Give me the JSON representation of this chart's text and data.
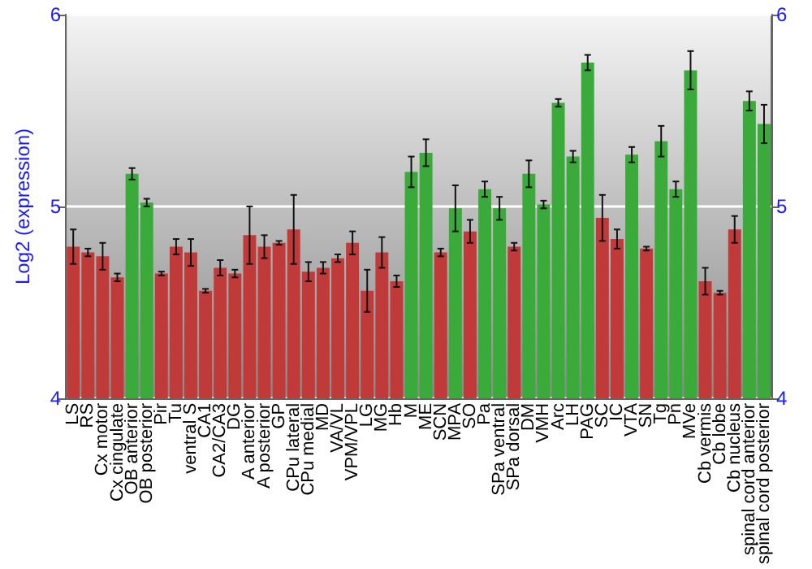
{
  "chart_data": {
    "type": "bar",
    "ylabel": "Log2 (expression)",
    "categories": [
      "LS",
      "RS",
      "Cx motor",
      "Cx cingulate",
      "OB anterior",
      "OB posterior",
      "Pir",
      "Tu",
      "ventral S",
      "CA1",
      "CA2/CA3",
      "DG",
      "A anterior",
      "A posterior",
      "GP",
      "CPu lateral",
      "CPu medial",
      "MD",
      "VA/VL",
      "VPM/VPL",
      "LG",
      "MG",
      "Hb",
      "M",
      "ME",
      "SCN",
      "MPA",
      "SO",
      "Pa",
      "SPa ventral",
      "SPa dorsal",
      "DM",
      "VMH",
      "Arc",
      "LH",
      "PAG",
      "SC",
      "IC",
      "VTA",
      "SN",
      "Tg",
      "Pn",
      "MVe",
      "Cb vermis",
      "Cb lobe",
      "Cb nucleus",
      "spinal cord anterior",
      "spinal cord posterior"
    ],
    "values": [
      4.79,
      4.76,
      4.74,
      4.63,
      5.17,
      5.02,
      4.65,
      4.79,
      4.76,
      4.56,
      4.68,
      4.65,
      4.85,
      4.79,
      4.81,
      4.88,
      4.66,
      4.68,
      4.73,
      4.81,
      4.56,
      4.76,
      4.61,
      5.18,
      5.28,
      4.76,
      4.99,
      4.87,
      5.09,
      4.99,
      4.79,
      5.17,
      5.01,
      5.54,
      5.26,
      5.75,
      4.94,
      4.83,
      5.27,
      4.78,
      5.34,
      5.09,
      5.71,
      4.61,
      4.55,
      4.88,
      5.55,
      5.43
    ],
    "errors": [
      0.09,
      0.02,
      0.07,
      0.02,
      0.03,
      0.02,
      0.01,
      0.04,
      0.07,
      0.01,
      0.04,
      0.02,
      0.15,
      0.06,
      0.01,
      0.18,
      0.05,
      0.03,
      0.02,
      0.06,
      0.11,
      0.08,
      0.03,
      0.08,
      0.07,
      0.02,
      0.12,
      0.06,
      0.04,
      0.06,
      0.02,
      0.07,
      0.02,
      0.02,
      0.03,
      0.04,
      0.12,
      0.05,
      0.04,
      0.01,
      0.08,
      0.04,
      0.1,
      0.07,
      0.01,
      0.07,
      0.05,
      0.1
    ],
    "colors": [
      "#c03a3a",
      "#c03a3a",
      "#c03a3a",
      "#c03a3a",
      "#3aaa3a",
      "#3aaa3a",
      "#c03a3a",
      "#c03a3a",
      "#c03a3a",
      "#c03a3a",
      "#c03a3a",
      "#c03a3a",
      "#c03a3a",
      "#c03a3a",
      "#c03a3a",
      "#c03a3a",
      "#c03a3a",
      "#c03a3a",
      "#c03a3a",
      "#c03a3a",
      "#c03a3a",
      "#c03a3a",
      "#c03a3a",
      "#3aaa3a",
      "#3aaa3a",
      "#c03a3a",
      "#3aaa3a",
      "#c03a3a",
      "#3aaa3a",
      "#3aaa3a",
      "#c03a3a",
      "#3aaa3a",
      "#3aaa3a",
      "#3aaa3a",
      "#3aaa3a",
      "#3aaa3a",
      "#c03a3a",
      "#c03a3a",
      "#3aaa3a",
      "#c03a3a",
      "#3aaa3a",
      "#3aaa3a",
      "#3aaa3a",
      "#c03a3a",
      "#c03a3a",
      "#c03a3a",
      "#3aaa3a",
      "#3aaa3a"
    ],
    "ylim": [
      4,
      6
    ],
    "yticks": [
      4,
      5,
      6
    ],
    "y2lim": [
      4,
      6
    ],
    "y2ticks": [
      4,
      5,
      6
    ],
    "grid": "y"
  }
}
